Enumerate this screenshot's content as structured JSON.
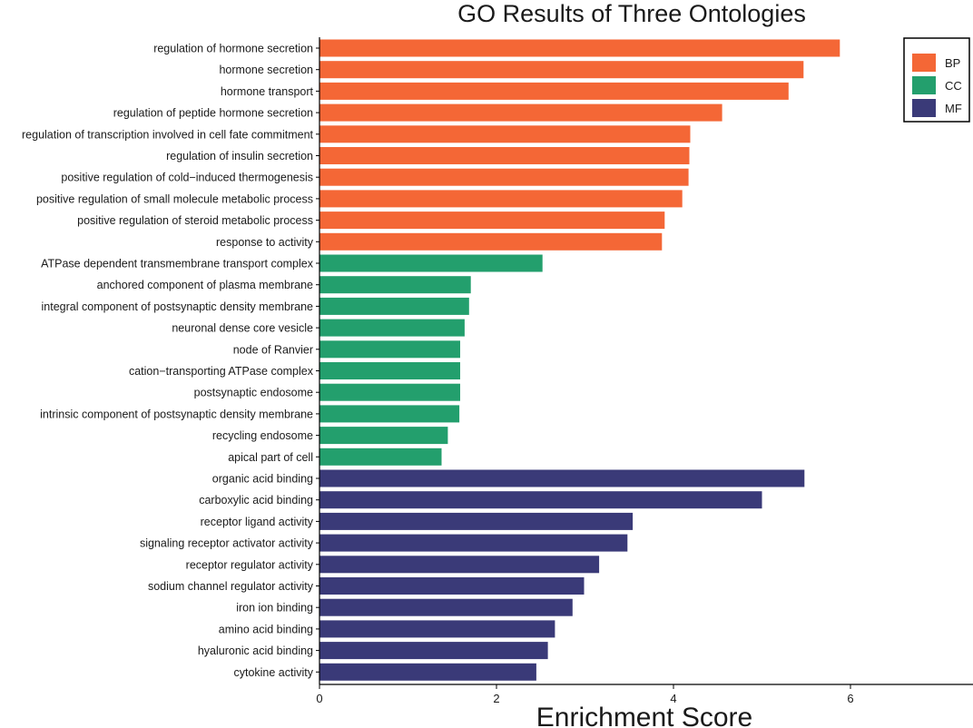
{
  "chart_data": {
    "type": "bar",
    "orientation": "horizontal",
    "title": "GO Results of Three Ontologies",
    "xlabel": "Enrichment Score",
    "ylabel": "",
    "xlim": [
      0,
      7.35
    ],
    "xticks": [
      0,
      2,
      4,
      6
    ],
    "grid": false,
    "legend_position": "top-right",
    "series": [
      {
        "name": "BP",
        "color": "#F46736",
        "items": [
          {
            "label": "regulation of hormone secretion",
            "value": 5.88
          },
          {
            "label": "hormone secretion",
            "value": 5.47
          },
          {
            "label": "hormone transport",
            "value": 5.3
          },
          {
            "label": "regulation of peptide hormone secretion",
            "value": 4.55
          },
          {
            "label": "regulation of transcription involved in cell fate commitment",
            "value": 4.19
          },
          {
            "label": "regulation of insulin secretion",
            "value": 4.18
          },
          {
            "label": "positive regulation of cold−induced thermogenesis",
            "value": 4.17
          },
          {
            "label": "positive regulation of small molecule metabolic process",
            "value": 4.1
          },
          {
            "label": "positive regulation of steroid metabolic process",
            "value": 3.9
          },
          {
            "label": "response to activity",
            "value": 3.87
          }
        ]
      },
      {
        "name": "CC",
        "color": "#239F6D",
        "items": [
          {
            "label": "ATPase dependent transmembrane transport complex",
            "value": 2.52
          },
          {
            "label": "anchored component of plasma membrane",
            "value": 1.71
          },
          {
            "label": "integral component of postsynaptic density membrane",
            "value": 1.69
          },
          {
            "label": "neuronal dense core vesicle",
            "value": 1.64
          },
          {
            "label": "node of Ranvier",
            "value": 1.59
          },
          {
            "label": "cation−transporting ATPase complex",
            "value": 1.59
          },
          {
            "label": "postsynaptic endosome",
            "value": 1.59
          },
          {
            "label": "intrinsic component of postsynaptic density membrane",
            "value": 1.58
          },
          {
            "label": "recycling endosome",
            "value": 1.45
          },
          {
            "label": "apical part of cell",
            "value": 1.38
          }
        ]
      },
      {
        "name": "MF",
        "color": "#3A3A78",
        "items": [
          {
            "label": "organic acid binding",
            "value": 5.48
          },
          {
            "label": "carboxylic acid binding",
            "value": 5.0
          },
          {
            "label": "receptor ligand activity",
            "value": 3.54
          },
          {
            "label": "signaling receptor activator activity",
            "value": 3.48
          },
          {
            "label": "receptor regulator activity",
            "value": 3.16
          },
          {
            "label": "sodium channel regulator activity",
            "value": 2.99
          },
          {
            "label": "iron ion binding",
            "value": 2.86
          },
          {
            "label": "amino acid binding",
            "value": 2.66
          },
          {
            "label": "hyaluronic acid binding",
            "value": 2.58
          },
          {
            "label": "cytokine activity",
            "value": 2.45
          }
        ]
      }
    ]
  }
}
